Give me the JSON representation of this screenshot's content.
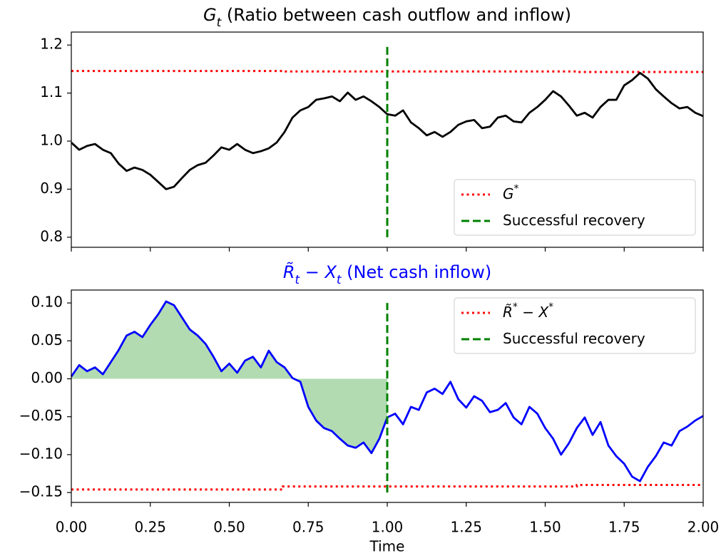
{
  "chart_data": [
    {
      "type": "line",
      "title": [
        {
          "text": "G",
          "style": "math"
        },
        {
          "text": "t",
          "style": "sub"
        },
        {
          "text": " (Ratio between cash outflow and inflow)",
          "style": "plain"
        }
      ],
      "title_color": "#000000",
      "x": [
        0,
        0.025,
        0.05,
        0.075,
        0.1,
        0.125,
        0.15,
        0.175,
        0.2,
        0.225,
        0.25,
        0.275,
        0.3,
        0.325,
        0.35,
        0.375,
        0.4,
        0.425,
        0.45,
        0.475,
        0.5,
        0.525,
        0.55,
        0.575,
        0.6,
        0.625,
        0.65,
        0.675,
        0.7,
        0.725,
        0.75,
        0.775,
        0.8,
        0.825,
        0.85,
        0.875,
        0.9,
        0.925,
        0.95,
        0.975,
        1,
        1.025,
        1.05,
        1.075,
        1.1,
        1.125,
        1.15,
        1.175,
        1.2,
        1.225,
        1.25,
        1.275,
        1.3,
        1.325,
        1.35,
        1.375,
        1.4,
        1.425,
        1.45,
        1.475,
        1.5,
        1.525,
        1.55,
        1.575,
        1.6,
        1.625,
        1.65,
        1.675,
        1.7,
        1.725,
        1.75,
        1.775,
        1.8,
        1.825,
        1.85,
        1.875,
        1.9,
        1.925,
        1.95,
        1.975,
        2
      ],
      "values": [
        0.997,
        0.982,
        0.99,
        0.994,
        0.982,
        0.975,
        0.953,
        0.938,
        0.945,
        0.94,
        0.93,
        0.915,
        0.9,
        0.905,
        0.923,
        0.94,
        0.95,
        0.955,
        0.97,
        0.987,
        0.982,
        0.994,
        0.982,
        0.975,
        0.979,
        0.985,
        0.997,
        1.019,
        1.049,
        1.064,
        1.071,
        1.086,
        1.089,
        1.093,
        1.083,
        1.101,
        1.086,
        1.093,
        1.083,
        1.071,
        1.056,
        1.053,
        1.064,
        1.039,
        1.027,
        1.012,
        1.019,
        1.009,
        1.019,
        1.034,
        1.041,
        1.044,
        1.027,
        1.03,
        1.049,
        1.053,
        1.041,
        1.039,
        1.059,
        1.071,
        1.086,
        1.104,
        1.093,
        1.074,
        1.053,
        1.059,
        1.049,
        1.071,
        1.086,
        1.086,
        1.116,
        1.127,
        1.142,
        1.13,
        1.108,
        1.093,
        1.079,
        1.068,
        1.071,
        1.059,
        1.052
      ],
      "color": "#000000",
      "reference": {
        "name": [
          {
            "text": "G",
            "style": "math"
          },
          {
            "text": "*",
            "style": "sup"
          }
        ],
        "color": "#ff0000",
        "x": [
          0,
          0.67,
          0.67,
          1.6,
          1.6,
          2
        ],
        "values": [
          1.146,
          1.146,
          1.145,
          1.145,
          1.144,
          1.144
        ]
      },
      "vline": {
        "name": [
          {
            "text": "Successful recovery",
            "style": "plain"
          }
        ],
        "color": "#008000",
        "x": 1,
        "ymin": 0.8,
        "ymax": 1.2
      },
      "legend": "lower right",
      "xlim": [
        0,
        2
      ],
      "xticks": [
        0,
        0.25,
        0.5,
        0.75,
        1,
        1.25,
        1.5,
        1.75,
        2
      ],
      "xtick_labels": false,
      "ylim": [
        0.779,
        1.227
      ],
      "yticks": [
        0.8,
        0.9,
        {
          "value": 1,
          "label": "1.0"
        },
        1.1,
        1.2
      ]
    },
    {
      "type": "line",
      "title": [
        {
          "text": "R̃",
          "style": "math"
        },
        {
          "text": "t",
          "style": "sub"
        },
        {
          "text": " − ",
          "style": "plain"
        },
        {
          "text": "X",
          "style": "math"
        },
        {
          "text": "t",
          "style": "sub"
        },
        {
          "text": " (Net cash inflow)",
          "style": "plain"
        }
      ],
      "title_color": "#0000ff",
      "x": [
        0,
        0.025,
        0.05,
        0.075,
        0.1,
        0.125,
        0.15,
        0.175,
        0.2,
        0.225,
        0.25,
        0.275,
        0.3,
        0.325,
        0.35,
        0.375,
        0.4,
        0.425,
        0.45,
        0.475,
        0.5,
        0.525,
        0.55,
        0.575,
        0.6,
        0.625,
        0.65,
        0.675,
        0.7,
        0.725,
        0.75,
        0.775,
        0.8,
        0.825,
        0.85,
        0.875,
        0.9,
        0.925,
        0.95,
        0.975,
        1,
        1.025,
        1.05,
        1.075,
        1.1,
        1.125,
        1.15,
        1.175,
        1.2,
        1.225,
        1.25,
        1.275,
        1.3,
        1.325,
        1.35,
        1.375,
        1.4,
        1.425,
        1.45,
        1.475,
        1.5,
        1.525,
        1.55,
        1.575,
        1.6,
        1.625,
        1.65,
        1.675,
        1.7,
        1.725,
        1.75,
        1.775,
        1.8,
        1.825,
        1.85,
        1.875,
        1.9,
        1.925,
        1.95,
        1.975,
        2
      ],
      "values": [
        0.003,
        0.018,
        0.01,
        0.015,
        0.006,
        0.022,
        0.038,
        0.057,
        0.062,
        0.055,
        0.071,
        0.085,
        0.102,
        0.097,
        0.081,
        0.065,
        0.057,
        0.046,
        0.029,
        0.01,
        0.02,
        0.008,
        0.024,
        0.029,
        0.015,
        0.037,
        0.022,
        0.015,
        0.001,
        -0.004,
        -0.037,
        -0.055,
        -0.065,
        -0.069,
        -0.079,
        -0.088,
        -0.091,
        -0.084,
        -0.098,
        -0.079,
        -0.051,
        -0.046,
        -0.06,
        -0.037,
        -0.041,
        -0.018,
        -0.013,
        -0.02,
        -0.004,
        -0.027,
        -0.038,
        -0.023,
        -0.029,
        -0.044,
        -0.041,
        -0.032,
        -0.051,
        -0.06,
        -0.037,
        -0.046,
        -0.065,
        -0.079,
        -0.1,
        -0.085,
        -0.065,
        -0.051,
        -0.074,
        -0.057,
        -0.088,
        -0.102,
        -0.112,
        -0.129,
        -0.135,
        -0.116,
        -0.102,
        -0.084,
        -0.088,
        -0.069,
        -0.063,
        -0.055,
        -0.049
      ],
      "color": "#0000ff",
      "fill": {
        "baseline": 0,
        "x_end": 1,
        "color": "#b2dbb2"
      },
      "reference": {
        "name": [
          {
            "text": "R̃",
            "style": "math"
          },
          {
            "text": "*",
            "style": "sup"
          },
          {
            "text": " − ",
            "style": "plain"
          },
          {
            "text": "X",
            "style": "math"
          },
          {
            "text": "*",
            "style": "sup"
          }
        ],
        "color": "#ff0000",
        "x": [
          0,
          0.67,
          0.67,
          1.6,
          1.6,
          2
        ],
        "values": [
          -0.146,
          -0.146,
          -0.142,
          -0.142,
          -0.14,
          -0.14
        ]
      },
      "vline": {
        "name": [
          {
            "text": "Successful recovery",
            "style": "plain"
          }
        ],
        "color": "#008000",
        "x": 1,
        "ymin": -0.15,
        "ymax": 0.1
      },
      "legend": "upper right",
      "xlim": [
        0,
        2
      ],
      "xticks": [
        {
          "value": 0,
          "label": "0.00"
        },
        {
          "value": 0.25,
          "label": "0.25"
        },
        {
          "value": 0.5,
          "label": "0.50"
        },
        {
          "value": 0.75,
          "label": "0.75"
        },
        {
          "value": 1,
          "label": "1.00"
        },
        {
          "value": 1.25,
          "label": "1.25"
        },
        {
          "value": 1.5,
          "label": "1.50"
        },
        {
          "value": 1.75,
          "label": "1.75"
        },
        {
          "value": 2,
          "label": "2.00"
        }
      ],
      "xtick_labels": true,
      "xlabel": "Time",
      "ylim": [
        -0.163,
        0.117
      ],
      "yticks": [
        {
          "value": -0.15,
          "label": "−0.15"
        },
        {
          "value": -0.1,
          "label": "−0.10"
        },
        {
          "value": -0.05,
          "label": "−0.05"
        },
        {
          "value": 0,
          "label": "0.00"
        },
        {
          "value": 0.05,
          "label": "0.05"
        },
        {
          "value": 0.1,
          "label": "0.10"
        }
      ]
    }
  ]
}
